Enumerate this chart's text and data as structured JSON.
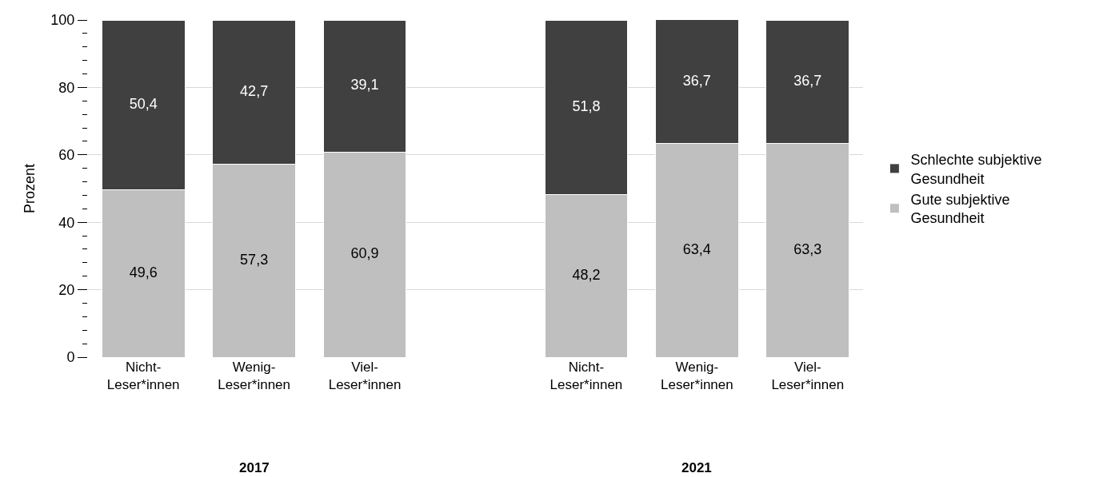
{
  "chart_data": {
    "type": "bar",
    "stacked": true,
    "categories": [
      "Nicht-\nLeser*innen",
      "Wenig-\nLeser*innen",
      "Viel-\nLeser*innen",
      null,
      "Nicht-\nLeser*innen",
      "Wenig-\nLeser*innen",
      "Viel-\nLeser*innen"
    ],
    "series": [
      {
        "name": "Gute subjektive\nGesundheit",
        "color": "#bfbfbf",
        "values": [
          49.6,
          57.3,
          60.9,
          null,
          48.2,
          63.4,
          63.3
        ],
        "value_labels": [
          "49,6",
          "57,3",
          "60,9",
          null,
          "48,2",
          "63,4",
          "63,3"
        ]
      },
      {
        "name": "Schlechte subjektive\nGesundheit",
        "color": "#404040",
        "values": [
          50.4,
          42.7,
          39.1,
          null,
          51.8,
          36.7,
          36.7
        ],
        "value_labels": [
          "50,4",
          "42,7",
          "39,1",
          null,
          "51,8",
          "36,7",
          "36,7"
        ]
      }
    ],
    "ylabel": "Prozent",
    "ylim": [
      0,
      100
    ],
    "yticks": [
      0,
      {
        "value": 4,
        "label": null
      },
      {
        "value": 8,
        "label": null
      },
      {
        "value": 12,
        "label": null
      },
      {
        "value": 16,
        "label": null
      },
      20,
      {
        "value": 24,
        "label": null
      },
      {
        "value": 28,
        "label": null
      },
      {
        "value": 32,
        "label": null
      },
      {
        "value": 36,
        "label": null
      },
      40,
      {
        "value": 44,
        "label": null
      },
      {
        "value": 48,
        "label": null
      },
      {
        "value": 52,
        "label": null
      },
      {
        "value": 56,
        "label": null
      },
      60,
      {
        "value": 64,
        "label": null
      },
      {
        "value": 68,
        "label": null
      },
      {
        "value": 72,
        "label": null
      },
      {
        "value": 76,
        "label": null
      },
      80,
      {
        "value": 84,
        "label": null
      },
      {
        "value": 88,
        "label": null
      },
      {
        "value": 92,
        "label": null
      },
      {
        "value": 96,
        "label": null
      },
      100
    ],
    "annotations": [
      "2017",
      "2021"
    ],
    "grid": "y",
    "legend": "right"
  }
}
